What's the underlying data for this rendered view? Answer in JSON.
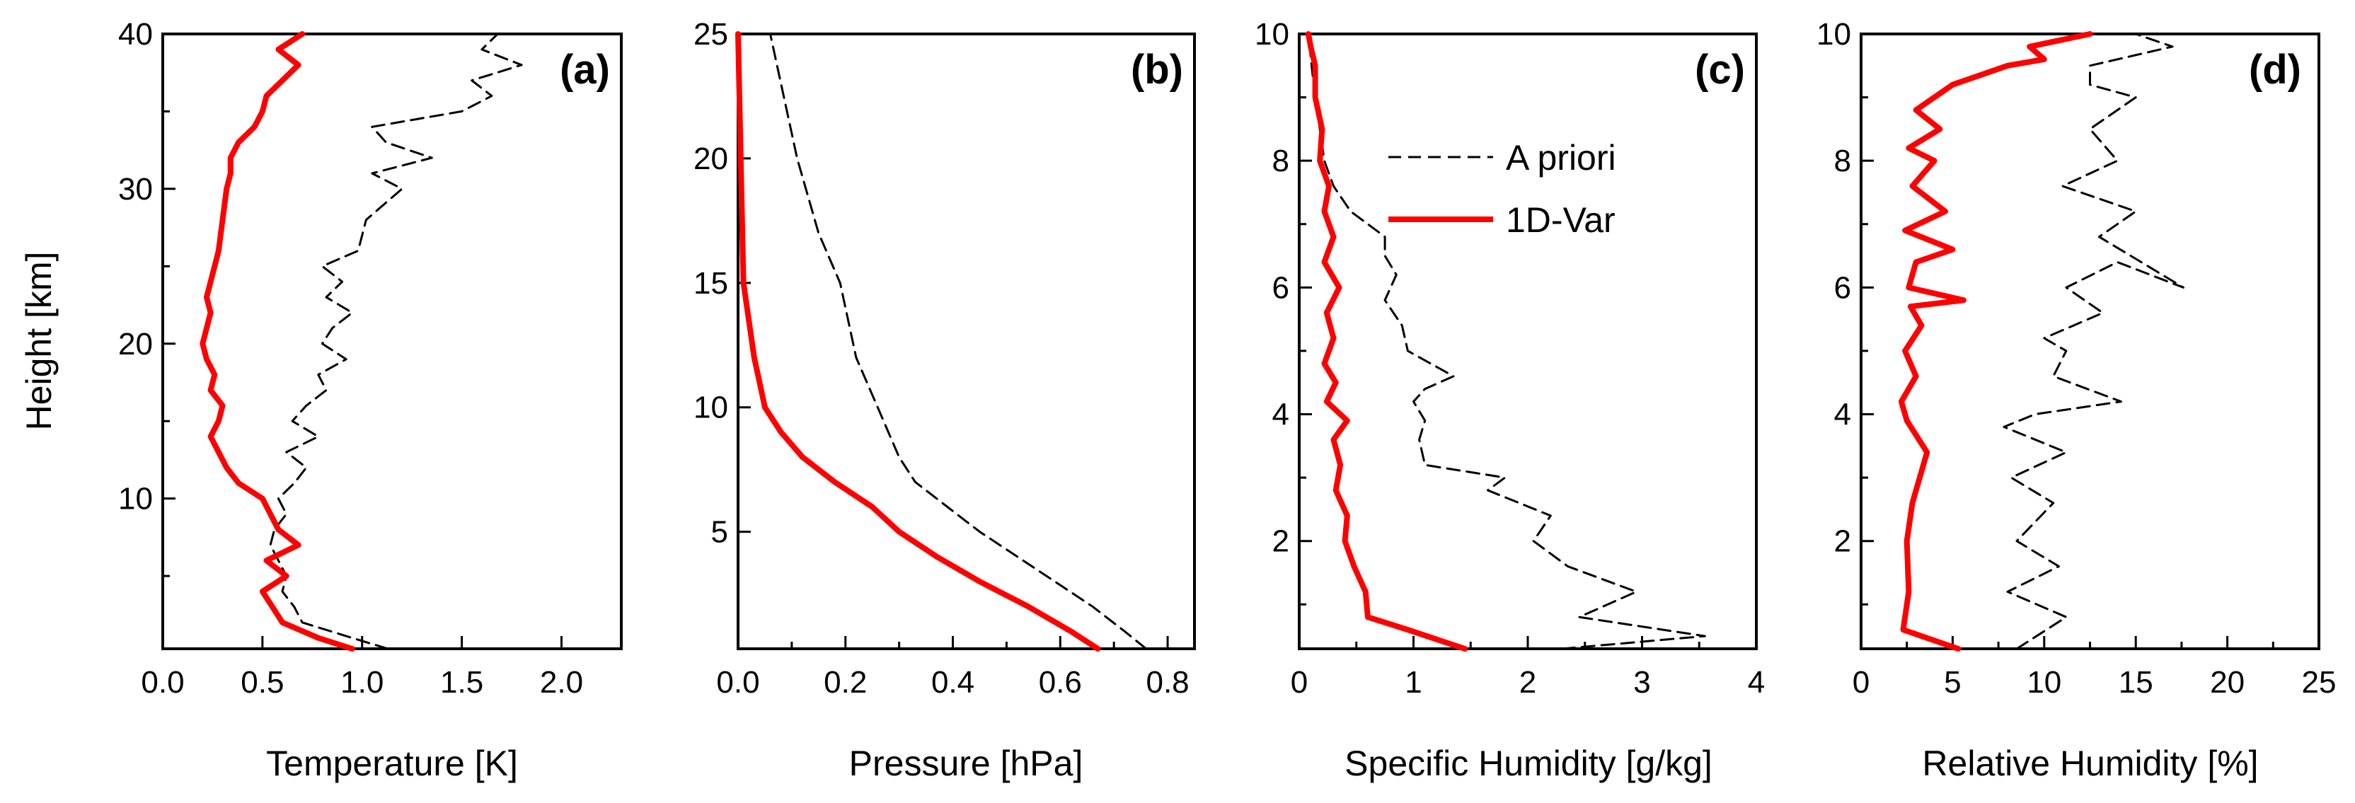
{
  "chart_data": [
    {
      "type": "line",
      "panel": "(a)",
      "xlabel": "Temperature [K]",
      "ylabel": "Height [km]",
      "xlim": [
        0,
        2.3
      ],
      "ylim": [
        0.3,
        40
      ],
      "xticks": [
        0.0,
        0.5,
        1.0,
        1.5,
        2.0
      ],
      "xtick_labels": [
        "0.0",
        "0.5",
        "1.0",
        "1.5",
        "2.0"
      ],
      "yticks": [
        10,
        20,
        30,
        40
      ],
      "ytick_labels": [
        "10",
        "20",
        "30",
        "40"
      ],
      "y_minor_step": 5,
      "series": [
        {
          "name": "A priori",
          "style": "dashed",
          "color": "#000000",
          "x": [
            1.13,
            0.95,
            0.7,
            0.66,
            0.6,
            0.62,
            0.58,
            0.54,
            0.56,
            0.62,
            0.58,
            0.66,
            0.72,
            0.62,
            0.78,
            0.65,
            0.72,
            0.82,
            0.78,
            0.92,
            0.8,
            0.85,
            0.95,
            0.82,
            0.9,
            0.8,
            0.98,
            1.02,
            1.2,
            1.05,
            1.35,
            1.12,
            1.05,
            1.5,
            1.65,
            1.55,
            1.8,
            1.6,
            1.68
          ],
          "y": [
            0.3,
            1,
            2,
            3,
            4,
            5,
            6,
            7,
            8,
            9,
            10,
            11,
            12,
            13,
            14,
            15,
            16,
            17,
            18,
            19,
            20,
            21,
            22,
            23,
            24,
            25,
            26,
            28,
            30,
            31,
            32,
            33,
            34,
            35,
            36,
            37,
            38,
            39,
            40
          ]
        },
        {
          "name": "1D-Var",
          "style": "solid",
          "color": "#ff0000",
          "x": [
            0.95,
            0.78,
            0.6,
            0.55,
            0.5,
            0.62,
            0.52,
            0.68,
            0.58,
            0.54,
            0.5,
            0.38,
            0.32,
            0.28,
            0.24,
            0.28,
            0.3,
            0.24,
            0.26,
            0.22,
            0.2,
            0.22,
            0.24,
            0.22,
            0.24,
            0.26,
            0.28,
            0.3,
            0.32,
            0.34,
            0.34,
            0.38,
            0.46,
            0.5,
            0.52,
            0.6,
            0.68,
            0.58,
            0.7
          ],
          "y": [
            0.3,
            1,
            2,
            3,
            4,
            5,
            6,
            7,
            8,
            9,
            10,
            11,
            12,
            13,
            14,
            15,
            16,
            17,
            18,
            19,
            20,
            21,
            22,
            23,
            24,
            25,
            26,
            28,
            30,
            31,
            32,
            33,
            34,
            35,
            36,
            37,
            38,
            39,
            40
          ]
        }
      ]
    },
    {
      "type": "line",
      "panel": "(b)",
      "xlabel": "Pressure [hPa]",
      "ylabel": "",
      "xlim": [
        0,
        0.85
      ],
      "ylim": [
        0.3,
        25
      ],
      "xticks": [
        0.0,
        0.2,
        0.4,
        0.6,
        0.8
      ],
      "xtick_labels": [
        "0.0",
        "0.2",
        "0.4",
        "0.6",
        "0.8"
      ],
      "x_minor_step": 0.1,
      "yticks": [
        5,
        10,
        15,
        20,
        25
      ],
      "ytick_labels": [
        "5",
        "10",
        "15",
        "20",
        "25"
      ],
      "series": [
        {
          "name": "A priori",
          "style": "dashed",
          "color": "#000000",
          "x": [
            0.76,
            0.72,
            0.66,
            0.59,
            0.52,
            0.45,
            0.39,
            0.33,
            0.3,
            0.26,
            0.22,
            0.19,
            0.15,
            0.11,
            0.08,
            0.06
          ],
          "y": [
            0.3,
            1,
            2,
            3,
            4,
            5,
            6,
            7,
            8,
            10,
            12,
            15,
            17,
            20,
            23,
            25
          ]
        },
        {
          "name": "1D-Var",
          "style": "solid",
          "color": "#ff0000",
          "x": [
            0.67,
            0.62,
            0.54,
            0.45,
            0.37,
            0.3,
            0.25,
            0.18,
            0.12,
            0.08,
            0.05,
            0.04,
            0.03,
            0.01,
            0.005,
            0.0
          ],
          "y": [
            0.3,
            1,
            2,
            3,
            4,
            5,
            6,
            7,
            8,
            9,
            10,
            11,
            12,
            15,
            20,
            25
          ]
        }
      ]
    },
    {
      "type": "line",
      "panel": "(c)",
      "xlabel": "Specific Humidity [g/kg]",
      "ylabel": "",
      "xlim": [
        0,
        4
      ],
      "ylim": [
        0.3,
        10
      ],
      "xticks": [
        0,
        1,
        2,
        3,
        4
      ],
      "xtick_labels": [
        "0",
        "1",
        "2",
        "3",
        "4"
      ],
      "x_minor_step": 0.5,
      "yticks": [
        2,
        4,
        6,
        8,
        10
      ],
      "ytick_labels": [
        "2",
        "4",
        "6",
        "8",
        "10"
      ],
      "y_minor_step": 1,
      "series": [
        {
          "name": "A priori",
          "style": "dashed",
          "color": "#000000",
          "x": [
            2.3,
            3.55,
            2.45,
            2.95,
            2.35,
            2.05,
            2.2,
            1.65,
            1.8,
            1.1,
            1.05,
            1.1,
            1.0,
            1.1,
            1.35,
            0.95,
            0.9,
            0.75,
            0.85,
            0.75,
            0.75,
            0.45,
            0.3,
            0.22,
            0.18,
            0.12,
            0.08
          ],
          "y": [
            0.3,
            0.5,
            0.8,
            1.2,
            1.6,
            2.0,
            2.4,
            2.8,
            3.0,
            3.2,
            3.6,
            3.9,
            4.2,
            4.4,
            4.6,
            5.0,
            5.4,
            5.8,
            6.2,
            6.5,
            6.8,
            7.2,
            7.6,
            8.0,
            8.5,
            9.3,
            10.0
          ]
        },
        {
          "name": "1D-Var",
          "style": "solid",
          "color": "#ff0000",
          "x": [
            1.45,
            0.95,
            0.6,
            0.58,
            0.48,
            0.4,
            0.42,
            0.32,
            0.36,
            0.3,
            0.42,
            0.24,
            0.32,
            0.22,
            0.3,
            0.24,
            0.35,
            0.22,
            0.3,
            0.22,
            0.26,
            0.18,
            0.2,
            0.14,
            0.14,
            0.1,
            0.08
          ],
          "y": [
            0.3,
            0.6,
            0.8,
            1.2,
            1.6,
            2.0,
            2.4,
            2.8,
            3.2,
            3.6,
            3.9,
            4.2,
            4.5,
            4.8,
            5.2,
            5.6,
            6.0,
            6.4,
            6.8,
            7.2,
            7.6,
            8.0,
            8.5,
            9.0,
            9.5,
            9.8,
            10.0
          ]
        }
      ],
      "legend": {
        "position": "top-center",
        "entries": [
          "A priori",
          "1D-Var"
        ]
      }
    },
    {
      "type": "line",
      "panel": "(d)",
      "xlabel": "Relative Humidity [%]",
      "ylabel": "",
      "xlim": [
        0,
        25
      ],
      "ylim": [
        0.3,
        10
      ],
      "xticks": [
        0,
        5,
        10,
        15,
        20,
        25
      ],
      "xtick_labels": [
        "0",
        "5",
        "10",
        "15",
        "20",
        "25"
      ],
      "x_minor_step": 2.5,
      "yticks": [
        2,
        4,
        6,
        8,
        10
      ],
      "ytick_labels": [
        "2",
        "4",
        "6",
        "8",
        "10"
      ],
      "y_minor_step": 1,
      "series": [
        {
          "name": "A priori",
          "style": "dashed",
          "color": "#000000",
          "x": [
            8.5,
            11.2,
            8.0,
            10.8,
            8.5,
            10.5,
            8.2,
            11.2,
            7.8,
            9.5,
            14.2,
            10.5,
            11.2,
            10.0,
            13.2,
            11.2,
            14.0,
            17.6,
            13.0,
            15.0,
            11.0,
            14.0,
            12.5,
            15.0,
            12.5,
            12.5,
            17.0,
            15.0,
            16.8
          ],
          "y": [
            0.3,
            0.8,
            1.2,
            1.6,
            2.0,
            2.6,
            3.0,
            3.4,
            3.8,
            4.0,
            4.2,
            4.6,
            5.0,
            5.2,
            5.6,
            6.0,
            6.4,
            6.0,
            6.8,
            7.2,
            7.6,
            8.0,
            8.5,
            9.0,
            9.2,
            9.5,
            9.8,
            10.0,
            10.0
          ]
        },
        {
          "name": "1D-Var",
          "style": "solid",
          "color": "#ff0000",
          "x": [
            5.3,
            2.3,
            2.6,
            2.5,
            2.8,
            3.6,
            2.5,
            2.2,
            3.0,
            2.4,
            3.3,
            2.7,
            5.6,
            2.6,
            3.0,
            5.0,
            2.4,
            4.6,
            2.8,
            4.0,
            2.6,
            4.3,
            3.0,
            4.0,
            5.0,
            8.0,
            10.0,
            9.2,
            12.5
          ],
          "y": [
            0.3,
            0.6,
            1.2,
            2.0,
            2.6,
            3.4,
            3.9,
            4.2,
            4.6,
            5.0,
            5.4,
            5.7,
            5.8,
            6.0,
            6.4,
            6.6,
            6.9,
            7.2,
            7.6,
            8.0,
            8.2,
            8.5,
            8.8,
            9.0,
            9.2,
            9.5,
            9.6,
            9.8,
            10.0
          ]
        }
      ],
      "tag_note": ""
    }
  ],
  "colors": {
    "apriori": "#000000",
    "onedvar": "#ff0000"
  }
}
